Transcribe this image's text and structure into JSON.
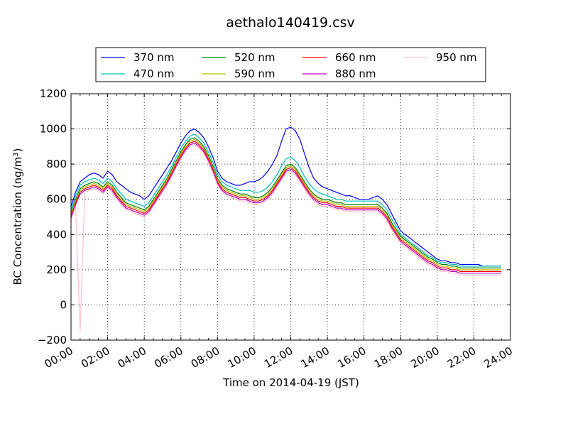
{
  "chart_data": {
    "type": "line",
    "title": "aethalo140419.csv",
    "xlabel": "Time on 2014-04-19 (JST)",
    "ylabel": "BC Concentration (ng/m",
    "ylabel_sup": "3",
    "ylabel_close": ")",
    "x_unit": "hours",
    "xlim": [
      0,
      24
    ],
    "ylim": [
      -200,
      1200
    ],
    "x_ticks": [
      0,
      2,
      4,
      6,
      8,
      10,
      12,
      14,
      16,
      18,
      20,
      22,
      24
    ],
    "x_tick_labels": [
      "00:00",
      "02:00",
      "04:00",
      "06:00",
      "08:00",
      "10:00",
      "12:00",
      "14:00",
      "16:00",
      "18:00",
      "20:00",
      "22:00",
      "24:00"
    ],
    "y_ticks": [
      -200,
      0,
      200,
      400,
      600,
      800,
      1000,
      1200
    ],
    "y_tick_labels": [
      "−200",
      "0",
      "200",
      "400",
      "600",
      "800",
      "1000",
      "1200"
    ],
    "grid": true,
    "legend_position": "top",
    "legend_columns": 4,
    "x": [
      0,
      0.25,
      0.5,
      0.75,
      1,
      1.25,
      1.5,
      1.75,
      2,
      2.25,
      2.5,
      2.75,
      3,
      3.25,
      3.5,
      3.75,
      4,
      4.25,
      4.5,
      4.75,
      5,
      5.25,
      5.5,
      5.75,
      6,
      6.25,
      6.5,
      6.75,
      7,
      7.25,
      7.5,
      7.75,
      8,
      8.25,
      8.5,
      8.75,
      9,
      9.25,
      9.5,
      9.75,
      10,
      10.25,
      10.5,
      10.75,
      11,
      11.25,
      11.5,
      11.75,
      12,
      12.25,
      12.5,
      12.75,
      13,
      13.25,
      13.5,
      13.75,
      14,
      14.25,
      14.5,
      14.75,
      15,
      15.25,
      15.5,
      15.75,
      16,
      16.25,
      16.5,
      16.75,
      17,
      17.25,
      17.5,
      17.75,
      18,
      18.25,
      18.5,
      18.75,
      19,
      19.25,
      19.5,
      19.75,
      20,
      20.25,
      20.5,
      20.75,
      21,
      21.25,
      21.5,
      21.75,
      22,
      22.25,
      22.5,
      22.75,
      23,
      23.25,
      23.5
    ],
    "series": [
      {
        "name": "370 nm",
        "color": "#0000ff",
        "values": [
          560,
          640,
          700,
          720,
          740,
          750,
          740,
          720,
          760,
          740,
          700,
          680,
          660,
          640,
          630,
          620,
          600,
          620,
          660,
          700,
          740,
          780,
          820,
          870,
          920,
          960,
          990,
          1000,
          980,
          950,
          900,
          840,
          760,
          720,
          700,
          690,
          680,
          680,
          690,
          700,
          700,
          710,
          730,
          760,
          800,
          850,
          930,
          1000,
          1010,
          990,
          940,
          860,
          780,
          720,
          690,
          670,
          660,
          650,
          640,
          630,
          620,
          620,
          610,
          600,
          600,
          600,
          610,
          620,
          600,
          570,
          520,
          470,
          420,
          400,
          380,
          360,
          340,
          320,
          300,
          280,
          260,
          250,
          250,
          240,
          240,
          230,
          230,
          230,
          230,
          230,
          220,
          220,
          220,
          220,
          220
        ]
      },
      {
        "name": "470 nm",
        "color": "#00bfbf",
        "values": [
          540,
          620,
          680,
          700,
          710,
          720,
          710,
          690,
          720,
          700,
          660,
          630,
          600,
          590,
          580,
          570,
          560,
          580,
          620,
          660,
          700,
          740,
          790,
          840,
          890,
          930,
          960,
          970,
          950,
          920,
          870,
          810,
          740,
          700,
          680,
          670,
          660,
          650,
          650,
          650,
          640,
          640,
          650,
          670,
          700,
          740,
          790,
          830,
          840,
          820,
          780,
          730,
          690,
          660,
          640,
          630,
          620,
          610,
          600,
          600,
          590,
          590,
          590,
          590,
          590,
          590,
          590,
          590,
          570,
          540,
          490,
          450,
          400,
          380,
          360,
          340,
          320,
          300,
          280,
          270,
          250,
          240,
          240,
          230,
          230,
          220,
          220,
          220,
          220,
          220,
          220,
          220,
          220,
          220,
          220
        ]
      },
      {
        "name": "520 nm",
        "color": "#008000",
        "values": [
          520,
          600,
          660,
          680,
          690,
          700,
          690,
          670,
          700,
          680,
          640,
          610,
          580,
          570,
          560,
          550,
          540,
          560,
          600,
          640,
          680,
          720,
          770,
          820,
          870,
          910,
          940,
          950,
          930,
          900,
          850,
          790,
          720,
          680,
          660,
          650,
          640,
          630,
          630,
          620,
          610,
          610,
          620,
          640,
          670,
          710,
          750,
          790,
          800,
          780,
          740,
          700,
          660,
          630,
          610,
          600,
          600,
          590,
          580,
          580,
          570,
          570,
          570,
          570,
          570,
          570,
          570,
          570,
          550,
          520,
          470,
          430,
          390,
          370,
          350,
          330,
          310,
          290,
          270,
          260,
          240,
          230,
          230,
          220,
          220,
          210,
          210,
          210,
          210,
          210,
          210,
          210,
          210,
          210,
          210
        ]
      },
      {
        "name": "590 nm",
        "color": "#bfbf00",
        "values": [
          510,
          590,
          650,
          670,
          680,
          690,
          680,
          660,
          690,
          670,
          630,
          600,
          570,
          560,
          550,
          540,
          530,
          550,
          590,
          630,
          670,
          710,
          760,
          810,
          860,
          900,
          930,
          940,
          920,
          890,
          840,
          780,
          710,
          670,
          650,
          640,
          630,
          620,
          620,
          610,
          600,
          600,
          610,
          630,
          660,
          700,
          740,
          780,
          790,
          770,
          730,
          690,
          650,
          620,
          600,
          590,
          590,
          580,
          570,
          570,
          560,
          560,
          560,
          560,
          560,
          560,
          560,
          560,
          540,
          510,
          460,
          420,
          380,
          360,
          340,
          320,
          300,
          280,
          260,
          250,
          230,
          220,
          220,
          210,
          210,
          200,
          200,
          200,
          200,
          200,
          200,
          200,
          200,
          200,
          200
        ]
      },
      {
        "name": "660 nm",
        "color": "#ff0000",
        "values": [
          500,
          580,
          640,
          660,
          670,
          680,
          670,
          650,
          680,
          660,
          620,
          590,
          560,
          550,
          540,
          530,
          520,
          540,
          580,
          620,
          660,
          700,
          750,
          800,
          850,
          890,
          920,
          930,
          910,
          880,
          830,
          770,
          700,
          660,
          640,
          630,
          620,
          610,
          610,
          600,
          590,
          590,
          600,
          620,
          650,
          690,
          730,
          770,
          780,
          760,
          720,
          680,
          640,
          610,
          590,
          580,
          580,
          570,
          560,
          560,
          550,
          550,
          550,
          550,
          550,
          550,
          550,
          550,
          530,
          500,
          450,
          410,
          370,
          350,
          330,
          310,
          290,
          270,
          250,
          240,
          220,
          210,
          210,
          200,
          200,
          190,
          190,
          190,
          190,
          190,
          190,
          190,
          190,
          190,
          190
        ]
      },
      {
        "name": "880 nm",
        "color": "#bf00bf",
        "values": [
          490,
          570,
          630,
          650,
          660,
          670,
          660,
          640,
          670,
          650,
          610,
          580,
          550,
          540,
          530,
          520,
          510,
          530,
          570,
          610,
          650,
          690,
          740,
          790,
          840,
          880,
          910,
          920,
          900,
          870,
          820,
          760,
          690,
          650,
          630,
          620,
          610,
          600,
          600,
          590,
          580,
          580,
          590,
          610,
          640,
          680,
          720,
          760,
          770,
          750,
          710,
          670,
          630,
          600,
          580,
          570,
          570,
          560,
          550,
          550,
          540,
          540,
          540,
          540,
          540,
          540,
          540,
          540,
          520,
          490,
          440,
          400,
          360,
          340,
          320,
          300,
          280,
          260,
          240,
          230,
          210,
          200,
          200,
          190,
          190,
          180,
          180,
          180,
          180,
          180,
          180,
          180,
          180,
          180,
          180
        ]
      },
      {
        "name": "950 nm",
        "color": "#ffc0cb",
        "values": [
          480,
          560,
          -150,
          640,
          650,
          660,
          650,
          630,
          660,
          640,
          600,
          570,
          540,
          530,
          520,
          510,
          500,
          520,
          560,
          600,
          640,
          680,
          730,
          780,
          830,
          870,
          900,
          910,
          890,
          860,
          810,
          750,
          680,
          640,
          620,
          610,
          600,
          590,
          590,
          580,
          570,
          570,
          580,
          600,
          630,
          670,
          710,
          750,
          760,
          740,
          700,
          660,
          620,
          590,
          570,
          560,
          560,
          550,
          540,
          540,
          530,
          530,
          530,
          530,
          530,
          530,
          530,
          530,
          510,
          480,
          430,
          390,
          350,
          330,
          310,
          290,
          270,
          250,
          230,
          220,
          200,
          190,
          190,
          180,
          180,
          170,
          170,
          170,
          170,
          170,
          170,
          170,
          170,
          170,
          170
        ]
      }
    ]
  }
}
